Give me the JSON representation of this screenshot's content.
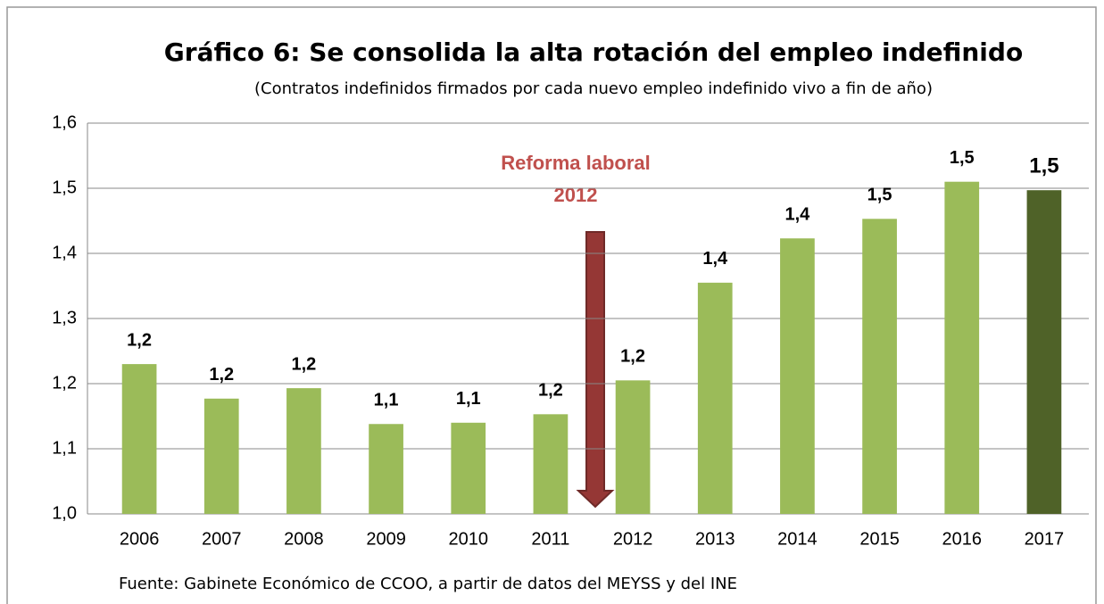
{
  "chart_data": {
    "type": "bar",
    "title": "Gráfico 6: Se consolida la alta rotación del empleo indefinido",
    "subtitle": "(Contratos  indefinidos firmados por cada nuevo empleo indefinido vivo a fin de año)",
    "categories": [
      "2006",
      "2007",
      "2008",
      "2009",
      "2010",
      "2011",
      "2012",
      "2013",
      "2014",
      "2015",
      "2016",
      "2017"
    ],
    "values": [
      1.23,
      1.177,
      1.193,
      1.138,
      1.14,
      1.153,
      1.205,
      1.355,
      1.423,
      1.453,
      1.51,
      1.497
    ],
    "value_labels": [
      "1,2",
      "1,2",
      "1,2",
      "1,1",
      "1,1",
      "1,2",
      "1,2",
      "1,4",
      "1,4",
      "1,5",
      "1,5",
      "1,5"
    ],
    "colors": [
      "#9bbb59",
      "#9bbb59",
      "#9bbb59",
      "#9bbb59",
      "#9bbb59",
      "#9bbb59",
      "#9bbb59",
      "#9bbb59",
      "#9bbb59",
      "#9bbb59",
      "#9bbb59",
      "#4f6228"
    ],
    "ylim": [
      1.0,
      1.6
    ],
    "yticks": [
      {
        "value": 1.0,
        "label": "1,0"
      },
      {
        "value": 1.1,
        "label": "1,1"
      },
      {
        "value": 1.2,
        "label": "1,2"
      },
      {
        "value": 1.3,
        "label": "1,3"
      },
      {
        "value": 1.4,
        "label": "1,4"
      },
      {
        "value": 1.5,
        "label": "1,5"
      },
      {
        "value": 1.6,
        "label": "1,6"
      }
    ],
    "grid": true,
    "annotation": [
      "Reforma  laboral",
      "2012"
    ],
    "source": "Fuente: Gabinete Económico de CCOO, a partir de datos del MEYSS y del INE"
  }
}
